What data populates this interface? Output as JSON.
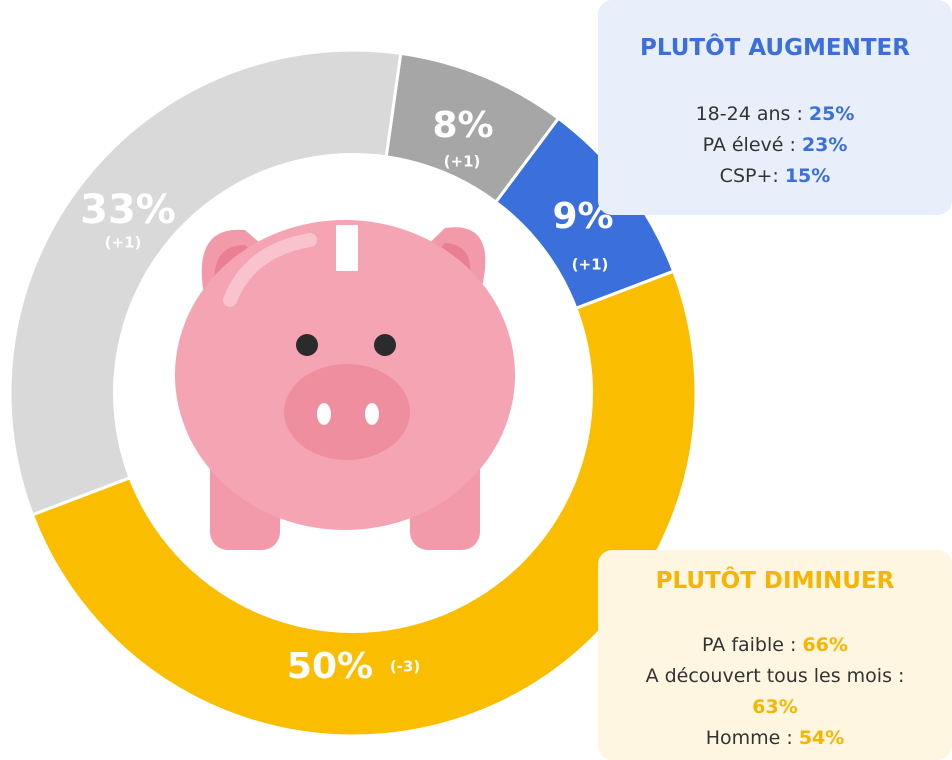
{
  "chart_data": {
    "type": "donut",
    "values": [
      8,
      9,
      50,
      33
    ],
    "value_labels": [
      "8%",
      "9%",
      "50%",
      "33%"
    ],
    "changes": [
      "(+1)",
      "(+1)",
      "(-3)",
      "(+1)"
    ],
    "colors": [
      "#a6a6a6",
      "#3a6fdc",
      "#fbbd00",
      "#d9d9d9"
    ]
  },
  "callouts": [
    {
      "title": "PLUTÔT AUGMENTER",
      "color": "#3a6fdc",
      "background": "#e8eefa",
      "lines": [
        {
          "label": "18-24 ans : ",
          "value": "25%"
        },
        {
          "label": "PA élevé : ",
          "value": "23%"
        },
        {
          "label": "CSP+: ",
          "value": "15%"
        }
      ]
    },
    {
      "title": "PLUTÔT DIMINUER",
      "color": "#f7b500",
      "background": "#fef6e1",
      "lines": [
        {
          "label": "PA faible : ",
          "value": "66%"
        },
        {
          "label": "A découvert tous les mois : ",
          "value": "63%"
        },
        {
          "label": "Homme : ",
          "value": "54%"
        }
      ]
    }
  ]
}
